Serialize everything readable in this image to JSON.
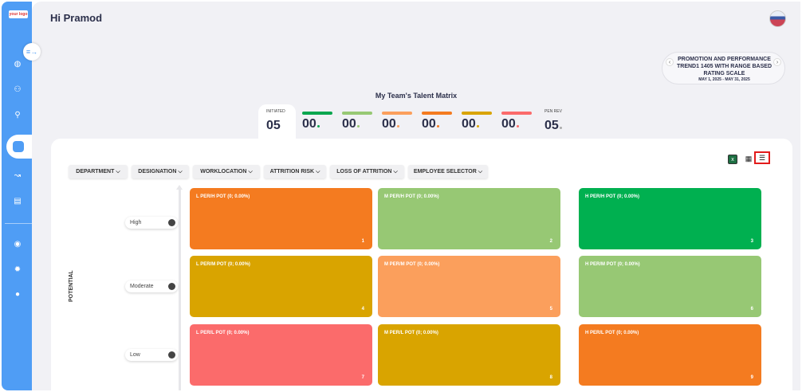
{
  "app": {
    "logo_text": "your logo",
    "greeting": "Hi Pramod"
  },
  "sidebar": {
    "items": [
      {
        "name": "dashboard-icon"
      },
      {
        "name": "team-icon"
      },
      {
        "name": "org-icon"
      },
      {
        "name": "talent-matrix-icon",
        "active": true
      },
      {
        "name": "analytics-icon"
      },
      {
        "name": "reports-icon"
      },
      {
        "name": "eye-icon"
      },
      {
        "name": "settings-icon"
      },
      {
        "name": "user-icon"
      }
    ]
  },
  "cycle_selector": {
    "title": "PROMOTION AND PERFORMANCE TREND1 1405 WITH RANGE BASED RATING SCALE",
    "date_range": "MAY 1, 2025 - MAY 31, 2025"
  },
  "matrix_title": "My Team's Talent Matrix",
  "stats": [
    {
      "label": "INITIATED",
      "value": "05",
      "color": null
    },
    {
      "label": "",
      "value": "00",
      "color": "#0aa64f"
    },
    {
      "label": "",
      "value": "00",
      "color": "#97c874"
    },
    {
      "label": "",
      "value": "00",
      "color": "#fb9f5c"
    },
    {
      "label": "",
      "value": "00",
      "color": "#f47b20"
    },
    {
      "label": "",
      "value": "00",
      "color": "#d9a400"
    },
    {
      "label": "",
      "value": "00",
      "color": "#fb6b6b"
    },
    {
      "label": "PEN REV",
      "value": "05",
      "color": null
    }
  ],
  "filters": [
    "DEPARTMENT",
    "DESIGNATION",
    "WORKLOCATION",
    "ATTRITION RISK",
    "LOSS OF ATTRITION",
    "EMPLOYEE SELECTOR"
  ],
  "axis_label": "POTENTIAL",
  "levels": [
    "High",
    "Moderate",
    "Low"
  ],
  "cells": [
    {
      "label": "L PER/H POT (0; 0.00%)",
      "num": "1",
      "color": "#f47b20"
    },
    {
      "label": "M PER/H POT (0; 0.00%)",
      "num": "2",
      "color": "#97c874"
    },
    {
      "label": "H PER/H POT (0; 0.00%)",
      "num": "3",
      "color": "#00b050"
    },
    {
      "label": "L PER/M POT (0; 0.00%)",
      "num": "4",
      "color": "#d9a400"
    },
    {
      "label": "M PER/M POT (0; 0.00%)",
      "num": "5",
      "color": "#fb9f5c"
    },
    {
      "label": "H PER/M POT (0; 0.00%)",
      "num": "6",
      "color": "#97c874"
    },
    {
      "label": "L PER/L POT (0; 0.00%)",
      "num": "7",
      "color": "#fb6b6b"
    },
    {
      "label": "M PER/L POT (0; 0.00%)",
      "num": "8",
      "color": "#d9a400"
    },
    {
      "label": "H PER/L POT (0; 0.00%)",
      "num": "9",
      "color": "#f47b20"
    }
  ],
  "view_icons": [
    "excel-export-icon",
    "grid-view-icon",
    "list-view-icon"
  ]
}
